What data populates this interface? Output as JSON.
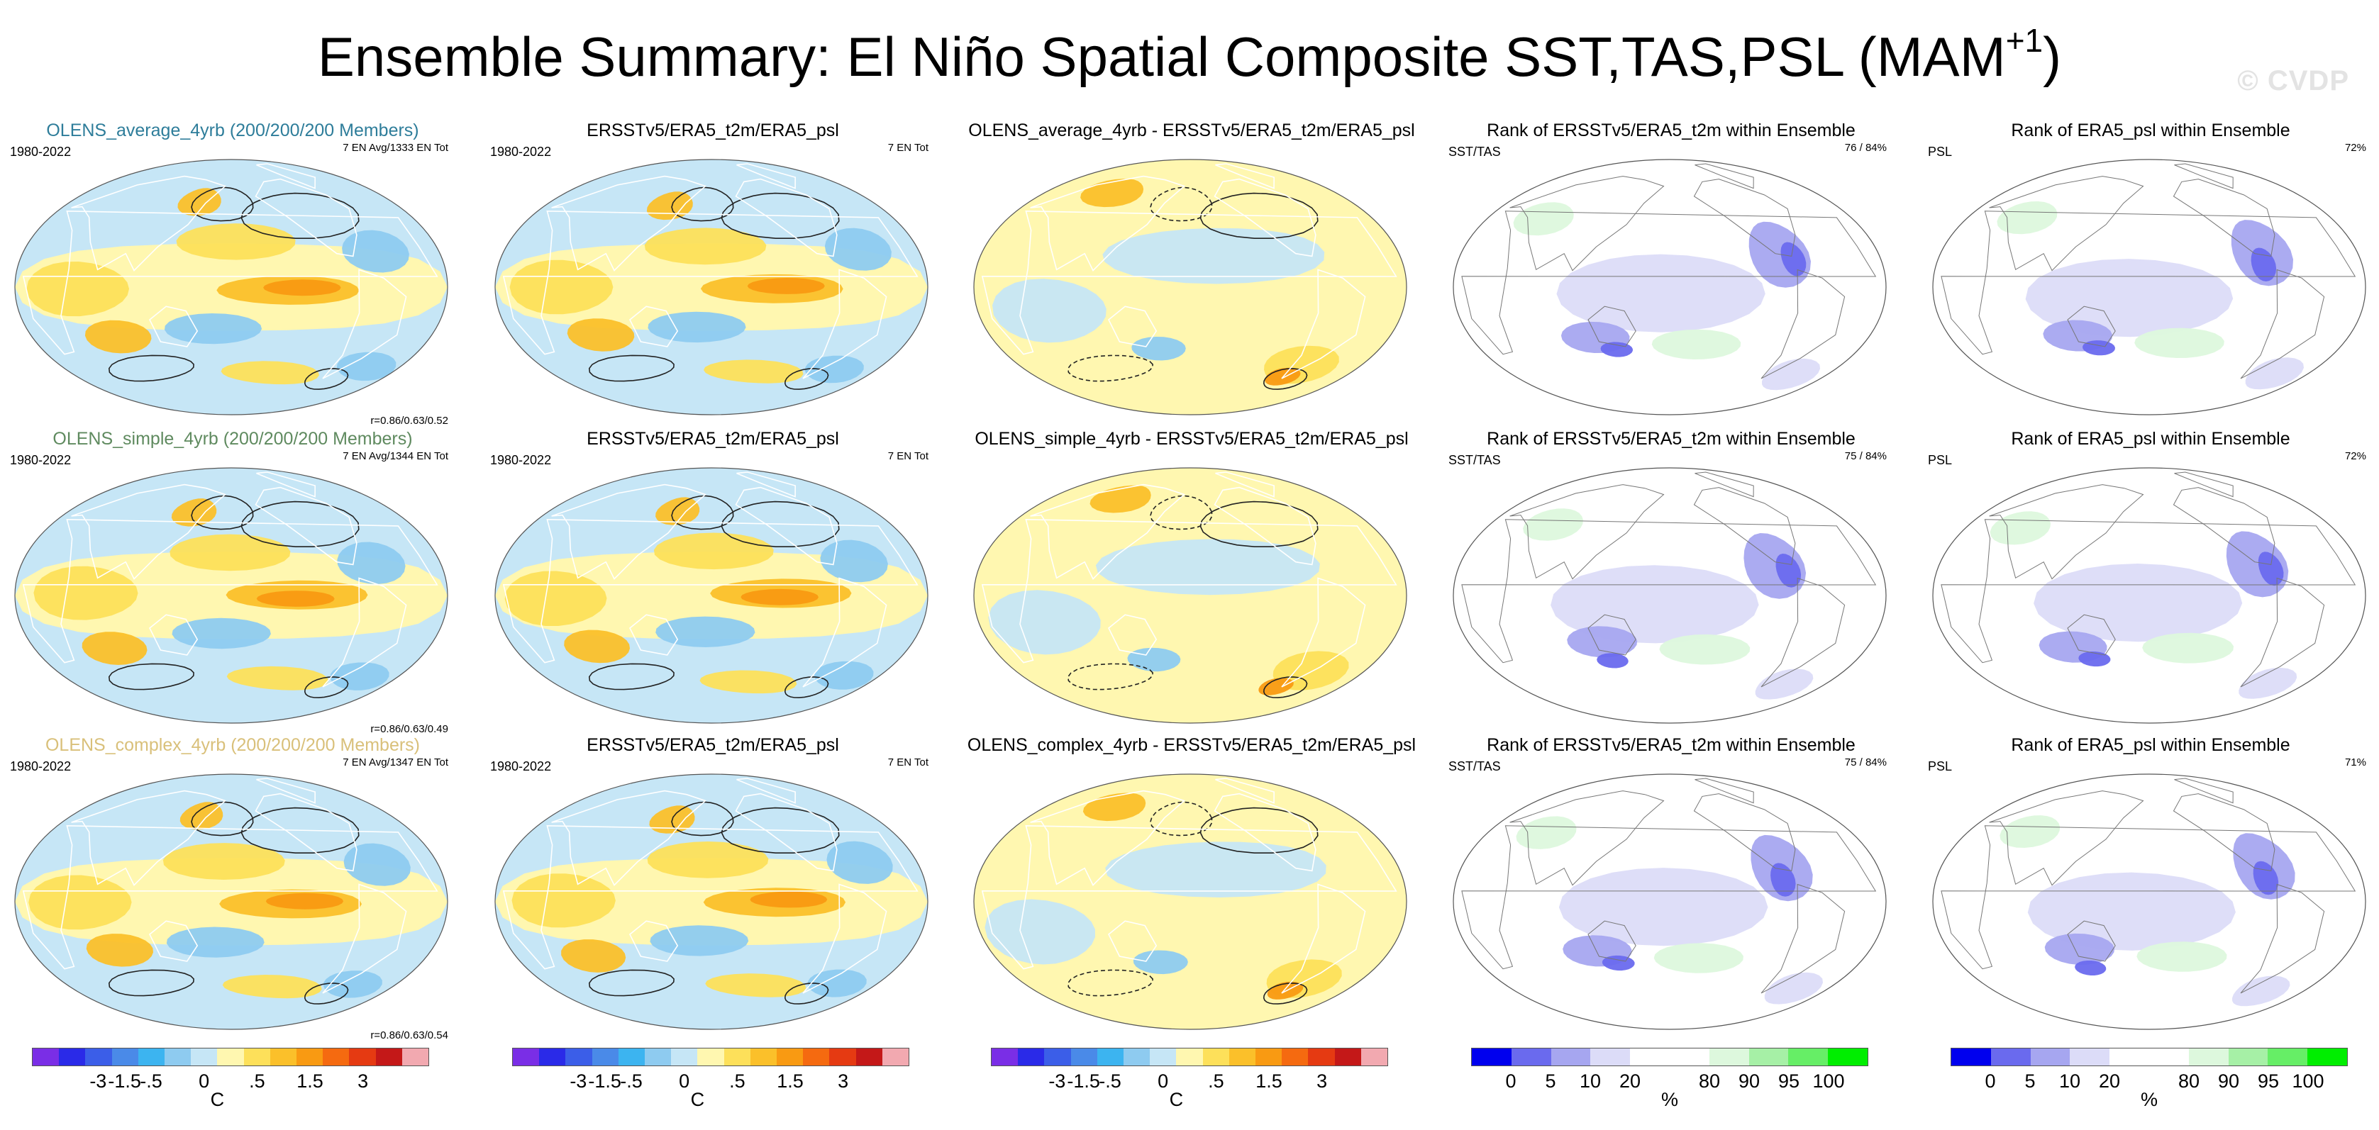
{
  "page": {
    "title": "Ensemble Summary: El Niño Spatial Composite SST,TAS,PSL (MAM",
    "title_superscript": "+1",
    "title_close": ")",
    "watermark": "© CVDP"
  },
  "rows": [
    {
      "panels": [
        {
          "title": "OLENS_average_4yrb (200/200/200 Members)",
          "title_color": "#2e7d9a",
          "left_label": "1980-2022",
          "right_label": "7 EN Avg/1333 EN Tot",
          "corr_label": "r=0.86/0.63/0.52",
          "kind": "anomaly"
        },
        {
          "title": "ERSSTv5/ERA5_t2m/ERA5_psl",
          "title_color": "#000000",
          "left_label": "1980-2022",
          "right_label": "7 EN Tot",
          "corr_label": "",
          "kind": "anomaly"
        },
        {
          "title": "OLENS_average_4yrb - ERSSTv5/ERA5_t2m/ERA5_psl",
          "title_color": "#000000",
          "left_label": "",
          "right_label": "",
          "corr_label": "",
          "kind": "difference"
        },
        {
          "title": "Rank of ERSSTv5/ERA5_t2m within Ensemble",
          "title_color": "#000000",
          "left_label": "SST/TAS",
          "right_label": "76 /  84%",
          "corr_label": "",
          "kind": "rank"
        },
        {
          "title": "Rank of ERA5_psl within Ensemble",
          "title_color": "#000000",
          "left_label": "PSL",
          "right_label": "72%",
          "corr_label": "",
          "kind": "rank"
        }
      ]
    },
    {
      "panels": [
        {
          "title": "OLENS_simple_4yrb (200/200/200 Members)",
          "title_color": "#5f8a5f",
          "left_label": "1980-2022",
          "right_label": "7 EN Avg/1344 EN Tot",
          "corr_label": "r=0.86/0.63/0.49",
          "kind": "anomaly"
        },
        {
          "title": "ERSSTv5/ERA5_t2m/ERA5_psl",
          "title_color": "#000000",
          "left_label": "1980-2022",
          "right_label": "7 EN Tot",
          "corr_label": "",
          "kind": "anomaly"
        },
        {
          "title": "OLENS_simple_4yrb - ERSSTv5/ERA5_t2m/ERA5_psl",
          "title_color": "#000000",
          "left_label": "",
          "right_label": "",
          "corr_label": "",
          "kind": "difference"
        },
        {
          "title": "Rank of ERSSTv5/ERA5_t2m within Ensemble",
          "title_color": "#000000",
          "left_label": "SST/TAS",
          "right_label": "75 /  84%",
          "corr_label": "",
          "kind": "rank"
        },
        {
          "title": "Rank of ERA5_psl within Ensemble",
          "title_color": "#000000",
          "left_label": "PSL",
          "right_label": "72%",
          "corr_label": "",
          "kind": "rank"
        }
      ]
    },
    {
      "panels": [
        {
          "title": "OLENS_complex_4yrb (200/200/200 Members)",
          "title_color": "#d9c07a",
          "left_label": "1980-2022",
          "right_label": "7 EN Avg/1347 EN Tot",
          "corr_label": "r=0.86/0.63/0.54",
          "kind": "anomaly"
        },
        {
          "title": "ERSSTv5/ERA5_t2m/ERA5_psl",
          "title_color": "#000000",
          "left_label": "1980-2022",
          "right_label": "7 EN Tot",
          "corr_label": "",
          "kind": "anomaly"
        },
        {
          "title": "OLENS_complex_4yrb - ERSSTv5/ERA5_t2m/ERA5_psl",
          "title_color": "#000000",
          "left_label": "",
          "right_label": "",
          "corr_label": "",
          "kind": "difference"
        },
        {
          "title": "Rank of ERSSTv5/ERA5_t2m within Ensemble",
          "title_color": "#000000",
          "left_label": "SST/TAS",
          "right_label": "75 /  84%",
          "corr_label": "",
          "kind": "rank"
        },
        {
          "title": "Rank of ERA5_psl within Ensemble",
          "title_color": "#000000",
          "left_label": "PSL",
          "right_label": "71%",
          "corr_label": "",
          "kind": "rank"
        }
      ]
    }
  ],
  "colorbars": {
    "temperature": {
      "colors": [
        "#7a2ee6",
        "#2a2ae8",
        "#3b5ee8",
        "#4a8ae8",
        "#3cb4f0",
        "#8ecbf0",
        "#c6e6f6",
        "#fff7b0",
        "#fde05a",
        "#fbc02a",
        "#f99a12",
        "#f56a10",
        "#e53a12",
        "#c41818",
        "#f2a9b0"
      ],
      "ticks": [
        "-3",
        "-1.5",
        "-.5",
        "0",
        ".5",
        "1.5",
        "3"
      ],
      "unit": "C"
    },
    "rank": {
      "colors": [
        "#0000ee",
        "#6a6aee",
        "#a6a6f0",
        "#dcdcf8",
        "#ffffff",
        "#ffffff",
        "#ddf8dd",
        "#a6f0a6",
        "#66ee66",
        "#00ee00"
      ],
      "ticks": [
        "0",
        "5",
        "10",
        "20",
        "80",
        "90",
        "95",
        "100"
      ],
      "unit": "%"
    }
  }
}
